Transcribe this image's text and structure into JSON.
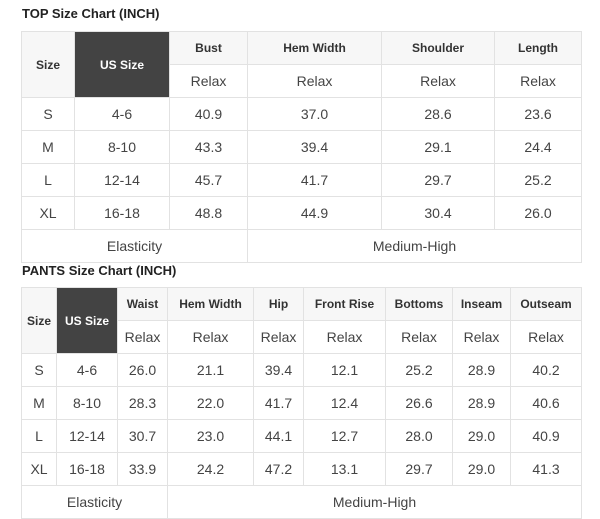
{
  "top": {
    "title": "TOP Size Chart (INCH)",
    "headers": [
      "Size",
      "US Size",
      "Bust",
      "Hem Width",
      "Shoulder",
      "Length"
    ],
    "subheaders": [
      "Relax",
      "Relax",
      "Relax",
      "Relax"
    ],
    "rows": [
      [
        "S",
        "4-6",
        "40.9",
        "37.0",
        "28.6",
        "23.6"
      ],
      [
        "M",
        "8-10",
        "43.3",
        "39.4",
        "29.1",
        "24.4"
      ],
      [
        "L",
        "12-14",
        "45.7",
        "41.7",
        "29.7",
        "25.2"
      ],
      [
        "XL",
        "16-18",
        "48.8",
        "44.9",
        "30.4",
        "26.0"
      ]
    ],
    "elasticity_label": "Elasticity",
    "elasticity_value": "Medium-High"
  },
  "pants": {
    "title": "PANTS Size Chart (INCH)",
    "headers": [
      "Size",
      "US Size",
      "Waist",
      "Hem Width",
      "Hip",
      "Front Rise",
      "Bottoms",
      "Inseam",
      "Outseam"
    ],
    "subheaders": [
      "Relax",
      "Relax",
      "Relax",
      "Relax",
      "Relax",
      "Relax",
      "Relax"
    ],
    "rows": [
      [
        "S",
        "4-6",
        "26.0",
        "21.1",
        "39.4",
        "12.1",
        "25.2",
        "28.9",
        "40.2"
      ],
      [
        "M",
        "8-10",
        "28.3",
        "22.0",
        "41.7",
        "12.4",
        "26.6",
        "28.9",
        "40.6"
      ],
      [
        "L",
        "12-14",
        "30.7",
        "23.0",
        "44.1",
        "12.7",
        "28.0",
        "29.0",
        "40.9"
      ],
      [
        "XL",
        "16-18",
        "33.9",
        "24.2",
        "47.2",
        "13.1",
        "29.7",
        "29.0",
        "41.3"
      ]
    ],
    "elasticity_label": "Elasticity",
    "elasticity_value": "Medium-High"
  },
  "colors": {
    "us_size_header_bg": "#434343",
    "header_bg": "#f7f7f7",
    "border": "#e2e2e2"
  }
}
